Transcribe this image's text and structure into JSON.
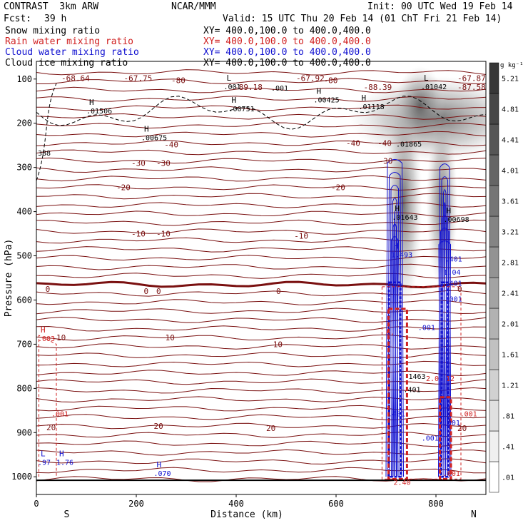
{
  "header": {
    "model": "CONTRAST  3km ARW",
    "org": "NCAR/MMM",
    "init": "Init: 00 UTC Wed 19 Feb 14",
    "fcst_label": "Fcst:",
    "fcst_value": "39 h",
    "valid": "Valid: 15 UTC Thu 20 Feb 14 (01 ChT Fri 21 Feb 14)",
    "fields": [
      {
        "name": "Snow mixing ratio",
        "xy": "XY= 400.0,100.0 to 400.0,400.0",
        "color": "#000000"
      },
      {
        "name": "Rain water mixing ratio",
        "xy": "XY= 400.0,100.0 to 400.0,400.0",
        "color": "#d02020"
      },
      {
        "name": "Cloud water mixing ratio",
        "xy": "XY= 400.0,100.0 to 400.0,400.0",
        "color": "#1010d0"
      },
      {
        "name": "Cloud ice mixing ratio",
        "xy": "XY= 400.0,100.0 to 400.0,400.0",
        "color": "#000000"
      }
    ]
  },
  "chart_data": {
    "type": "heatmap",
    "xlabel": "Distance (km)",
    "ylabel": "Pressure (hPa)",
    "xlim": [
      0,
      900
    ],
    "ylim": [
      1040,
      60
    ],
    "x_ticks": [
      0,
      200,
      400,
      600,
      800
    ],
    "y_ticks": [
      100,
      200,
      300,
      400,
      500,
      600,
      700,
      800,
      900,
      1000
    ],
    "x_end_labels": {
      "left": "S",
      "right": "N"
    },
    "colorbar": {
      "unit": "g kg⁻¹",
      "levels": [
        ".01",
        ".41",
        ".81",
        "1.21",
        "1.61",
        "2.01",
        "2.41",
        "2.81",
        "3.21",
        "3.61",
        "4.01",
        "4.41",
        "4.81",
        "5.21"
      ]
    },
    "temperature_labels": [
      {
        "x": 50,
        "p": 98,
        "text": "-68.64"
      },
      {
        "x": 175,
        "p": 98,
        "text": "-67.75"
      },
      {
        "x": 270,
        "p": 103,
        "text": "-80"
      },
      {
        "x": 520,
        "p": 98,
        "text": "-67.92"
      },
      {
        "x": 575,
        "p": 103,
        "text": "-80"
      },
      {
        "x": 980,
        "p": 98,
        "text": "-67.87"
      },
      {
        "x": 870,
        "p": 118,
        "text": "-87.58"
      },
      {
        "x": 396,
        "p": 118,
        "text": "-89.18"
      },
      {
        "x": 655,
        "p": 118,
        "text": "-88.39"
      },
      {
        "x": 256,
        "p": 248,
        "text": "-40"
      },
      {
        "x": 620,
        "p": 245,
        "text": "-40"
      },
      {
        "x": 683,
        "p": 245,
        "text": "-40"
      },
      {
        "x": 190,
        "p": 290,
        "text": "-30"
      },
      {
        "x": 240,
        "p": 290,
        "text": "-30"
      },
      {
        "x": 685,
        "p": 285,
        "text": "-30"
      },
      {
        "x": 160,
        "p": 345,
        "text": "-20"
      },
      {
        "x": 590,
        "p": 345,
        "text": "-20"
      },
      {
        "x": 190,
        "p": 450,
        "text": "-10"
      },
      {
        "x": 240,
        "p": 450,
        "text": "-10"
      },
      {
        "x": 516,
        "p": 455,
        "text": "-10"
      },
      {
        "x": 18,
        "p": 575,
        "text": "0"
      },
      {
        "x": 215,
        "p": 580,
        "text": "0"
      },
      {
        "x": 240,
        "p": 580,
        "text": "0"
      },
      {
        "x": 480,
        "p": 580,
        "text": "0"
      },
      {
        "x": 858,
        "p": 575,
        "text": "0"
      },
      {
        "x": 40,
        "p": 685,
        "text": "10"
      },
      {
        "x": 258,
        "p": 685,
        "text": "10"
      },
      {
        "x": 474,
        "p": 700,
        "text": "10"
      },
      {
        "x": 20,
        "p": 888,
        "text": "20"
      },
      {
        "x": 235,
        "p": 885,
        "text": "20"
      },
      {
        "x": 460,
        "p": 890,
        "text": "20"
      },
      {
        "x": 845,
        "p": 890,
        "text": "20"
      }
    ],
    "extrema": [
      {
        "x": 100,
        "p": 170,
        "mark": "H",
        "value": ".01506",
        "color": "#000000"
      },
      {
        "x": 210,
        "p": 230,
        "mark": "H",
        "value": ".00675",
        "color": "#000000"
      },
      {
        "x": 385,
        "p": 165,
        "mark": "H",
        "value": ".00751",
        "color": "#000000"
      },
      {
        "x": 375,
        "p": 115,
        "mark": "L",
        "value": ".001",
        "color": "#000000"
      },
      {
        "x": 470,
        "p": 118,
        "mark": "",
        "value": ".001",
        "color": "#000000"
      },
      {
        "x": 555,
        "p": 145,
        "mark": "H",
        "value": ".00425",
        "color": "#000000"
      },
      {
        "x": 645,
        "p": 160,
        "mark": "H",
        "value": ".01118",
        "color": "#000000"
      },
      {
        "x": 770,
        "p": 115,
        "mark": "L",
        "value": ".01042",
        "color": "#000000"
      },
      {
        "x": 720,
        "p": 245,
        "mark": "",
        "value": ".01865",
        "color": "#000000"
      },
      {
        "x": 0,
        "p": 265,
        "mark": "",
        "value": "388",
        "color": "#000000"
      },
      {
        "x": 712,
        "p": 410,
        "mark": "H",
        "value": ".01643",
        "color": "#000000"
      },
      {
        "x": 815,
        "p": 415,
        "mark": "H",
        "value": ".00698",
        "color": "#000000"
      },
      {
        "x": 710,
        "p": 495,
        "mark": "H",
        "value": "1.493",
        "color": "#1010d0"
      },
      {
        "x": 818,
        "p": 505,
        "mark": "",
        "value": ".401",
        "color": "#1010d0"
      },
      {
        "x": 815,
        "p": 535,
        "mark": "",
        "value": "1.04",
        "color": "#1010d0"
      },
      {
        "x": 818,
        "p": 560,
        "mark": "",
        "value": ".401",
        "color": "#1010d0"
      },
      {
        "x": 818,
        "p": 595,
        "mark": "",
        "value": ".001",
        "color": "#1010d0"
      },
      {
        "x": 764,
        "p": 660,
        "mark": "",
        "value": ".001",
        "color": "#1010d0"
      },
      {
        "x": 745,
        "p": 770,
        "mark": "",
        "value": "1463",
        "color": "#000000"
      },
      {
        "x": 735,
        "p": 800,
        "mark": "",
        "value": ".401",
        "color": "#000000"
      },
      {
        "x": 780,
        "p": 775,
        "mark": "",
        "value": "2.0",
        "color": "#d02020"
      },
      {
        "x": 820,
        "p": 775,
        "mark": "",
        "value": "12",
        "color": "#d02020"
      },
      {
        "x": 704,
        "p": 855,
        "mark": "",
        "value": ".401",
        "color": "#1010d0"
      },
      {
        "x": 814,
        "p": 875,
        "mark": "",
        "value": ".001",
        "color": "#1010d0"
      },
      {
        "x": 771,
        "p": 910,
        "mark": "",
        "value": ".001",
        "color": "#1010d0"
      },
      {
        "x": 814,
        "p": 990,
        "mark": "",
        "value": ".001",
        "color": "#d02020"
      },
      {
        "x": 700,
        "p": 670,
        "mark": "",
        "value": "6.",
        "color": "#d02020"
      },
      {
        "x": 848,
        "p": 855,
        "mark": "",
        "value": ".001",
        "color": "#d02020"
      },
      {
        "x": 30,
        "p": 855,
        "mark": "",
        "value": ".001",
        "color": "#d02020"
      },
      {
        "x": 0,
        "p": 685,
        "mark": "H",
        "value": ".003",
        "color": "#d02020"
      },
      {
        "x": 0,
        "p": 965,
        "mark": "L",
        "value": ".97",
        "color": "#1010d0"
      },
      {
        "x": 40,
        "p": 965,
        "mark": "H",
        "value": "1.76",
        "color": "#1010d0"
      },
      {
        "x": 235,
        "p": 990,
        "mark": "H",
        "value": ".070",
        "color": "#1010d0"
      },
      {
        "x": 715,
        "p": 1010,
        "mark": "",
        "value": "2.40",
        "color": "#d02020"
      }
    ]
  }
}
